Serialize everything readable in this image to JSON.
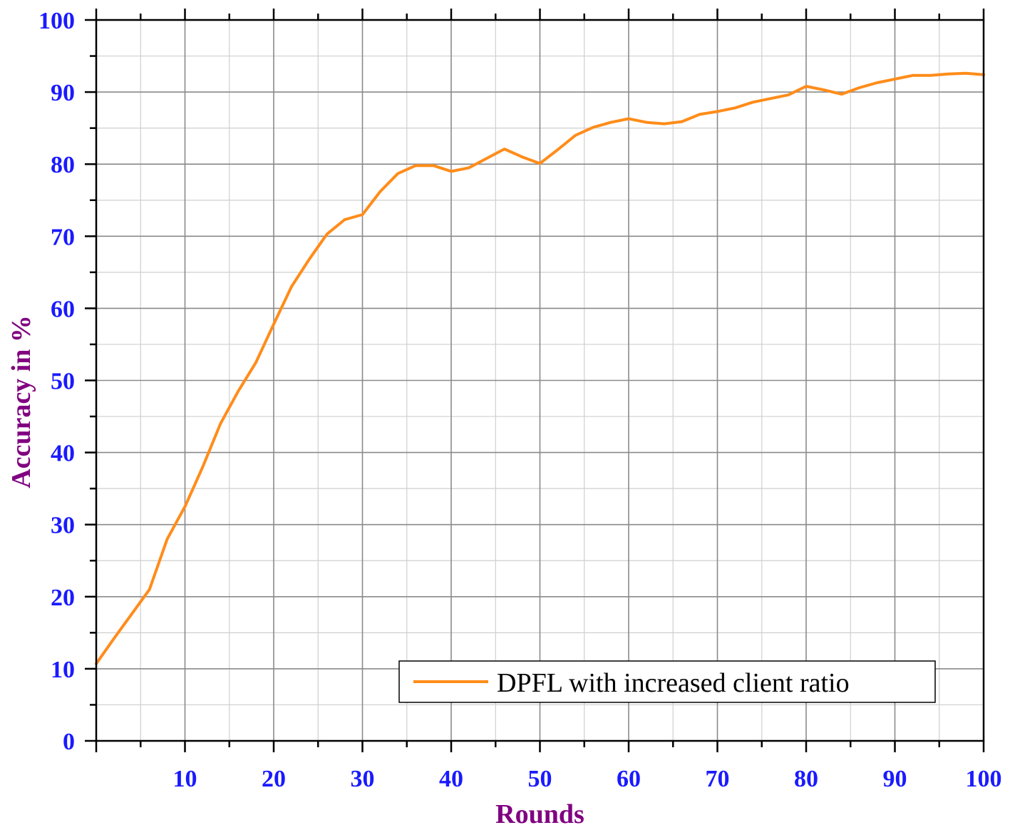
{
  "chart_data": {
    "type": "line",
    "xlabel": "Rounds",
    "ylabel": "Accuracy in %",
    "xlim": [
      0,
      100
    ],
    "ylim": [
      0,
      100
    ],
    "x_ticks": [
      10,
      20,
      30,
      40,
      50,
      60,
      70,
      80,
      90,
      100
    ],
    "y_ticks": [
      0,
      10,
      20,
      30,
      40,
      50,
      60,
      70,
      80,
      90,
      100
    ],
    "x_minor_step": 5,
    "y_minor_step": 5,
    "grid": true,
    "legend_position": "bottom-right",
    "colors": {
      "tick_label": "#1a1aff",
      "axis_title": "#800080",
      "series": "#ff8c1a"
    },
    "series": [
      {
        "name": "DPFL with increased client ratio",
        "x": [
          0,
          2,
          4,
          6,
          8,
          10,
          12,
          14,
          16,
          18,
          20,
          22,
          24,
          26,
          28,
          30,
          32,
          34,
          36,
          38,
          40,
          42,
          44,
          46,
          48,
          50,
          52,
          54,
          56,
          58,
          60,
          62,
          64,
          66,
          68,
          70,
          72,
          74,
          76,
          78,
          80,
          82,
          84,
          86,
          88,
          90,
          92,
          94,
          96,
          98,
          100
        ],
        "values": [
          10.7,
          14.2,
          17.6,
          21.0,
          28.0,
          32.5,
          38.0,
          44.0,
          48.5,
          52.5,
          57.8,
          63.0,
          66.8,
          70.3,
          72.3,
          73.0,
          76.2,
          78.7,
          79.8,
          79.8,
          79.0,
          79.5,
          80.8,
          82.1,
          81.0,
          80.1,
          82.0,
          84.0,
          85.1,
          85.8,
          86.3,
          85.8,
          85.6,
          85.9,
          86.9,
          87.3,
          87.8,
          88.6,
          89.1,
          89.6,
          90.8,
          90.3,
          89.7,
          90.6,
          91.3,
          91.8,
          92.3,
          92.3,
          92.5,
          92.6,
          92.4
        ]
      }
    ]
  }
}
